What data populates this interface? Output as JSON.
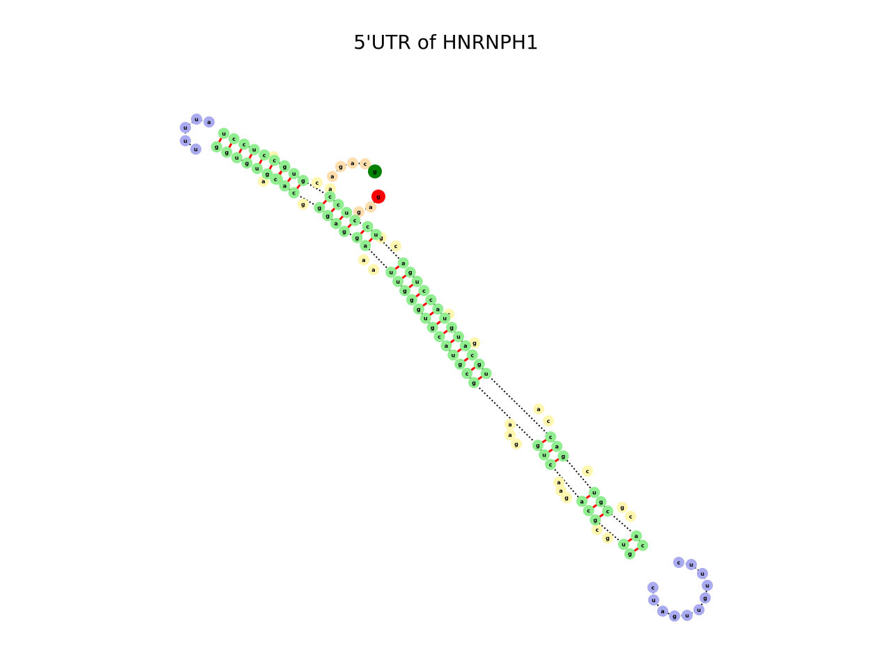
{
  "title": "5'UTR of HNRNPH1",
  "colors": {
    "stem": "#90ee90",
    "hairpin_loop": "#aaaaf0",
    "internal_loop": "#fff6b0",
    "exterior_loop": "#ffdead",
    "five_prime_end": "#008000",
    "three_prime_end": "#ff0000",
    "backbone": "#000000",
    "base_pair": "#ff0000"
  },
  "molecule": {
    "five_prime_base": "g",
    "three_prime_base": "g",
    "five_prime_tail": [
      "c",
      "a",
      "g",
      "a"
    ],
    "three_prime_tail": [
      "a",
      "g"
    ],
    "stem_pairs": [
      [
        "u",
        "g"
      ],
      [
        "c",
        "g"
      ],
      [
        "c",
        "u"
      ],
      [
        "u",
        "g"
      ],
      [
        "c",
        "u"
      ],
      [
        "c",
        "g"
      ],
      [
        "c",
        "g"
      ],
      [
        "g",
        "c"
      ],
      [
        "u",
        "a"
      ],
      [
        "g",
        "c"
      ],
      [
        "c",
        "g"
      ],
      [
        "c",
        "g"
      ],
      [
        "u",
        "a"
      ],
      [
        "c",
        "g"
      ],
      [
        "c",
        "g"
      ],
      [
        "u",
        "a"
      ],
      [
        "a",
        "u"
      ],
      [
        "g",
        "u"
      ],
      [
        "u",
        "g"
      ],
      [
        "c",
        "g"
      ],
      [
        "c",
        "g"
      ],
      [
        "a",
        "u"
      ],
      [
        "u",
        "g"
      ],
      [
        "g",
        "c"
      ],
      [
        "u",
        "a"
      ],
      [
        "a",
        "u"
      ],
      [
        "c",
        "g"
      ],
      [
        "g",
        "c"
      ],
      [
        "u",
        "g"
      ],
      [
        "c",
        "g"
      ],
      [
        "a",
        "u"
      ],
      [
        "g",
        "c"
      ],
      [
        "u",
        "a"
      ],
      [
        "g",
        "c"
      ],
      [
        "c",
        "g"
      ],
      [
        "a",
        "u"
      ],
      [
        "c",
        "g"
      ]
    ],
    "hairpin_loop_a": [
      "u",
      "a",
      "u",
      "u",
      "u"
    ],
    "hairpin_loop_b": [
      "c",
      "u",
      "u",
      "u",
      "g",
      "u",
      "u",
      "g",
      "a",
      "u"
    ],
    "internal_loop_bases": [
      "g",
      "a",
      "g",
      "c",
      "a",
      "g",
      "c",
      "a",
      "a",
      "c",
      "g",
      "a",
      "c",
      "a",
      "a",
      "g",
      "c",
      "a",
      "a",
      "g",
      "g",
      "c",
      "c",
      "g"
    ]
  }
}
